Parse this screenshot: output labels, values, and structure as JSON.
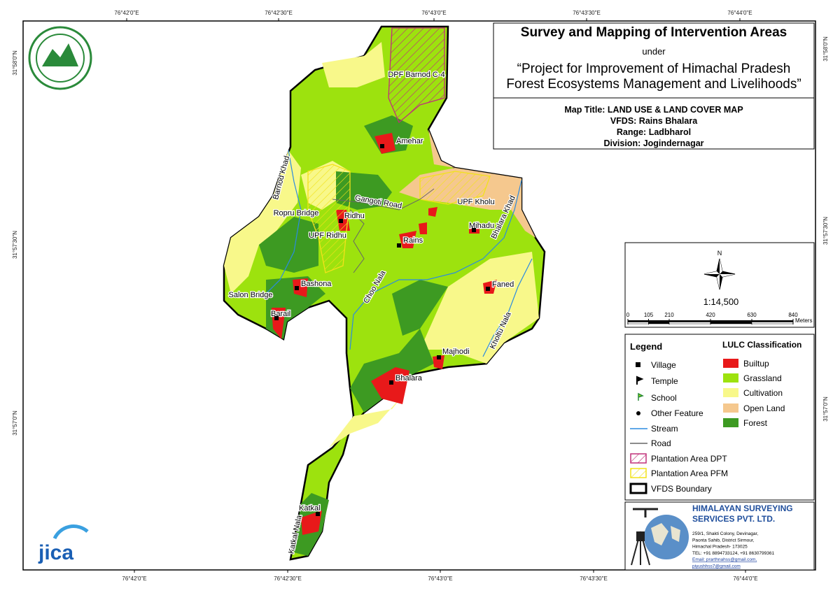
{
  "header": {
    "title": "Survey and Mapping of Intervention Areas",
    "under": "under",
    "project": [
      "“Project for Improvement of Himachal Pradesh",
      "Forest Ecosystems Management and Livelihoods”"
    ]
  },
  "map_info": {
    "map_title": "Map Title: LAND USE & LAND COVER MAP",
    "vfds": "VFDS: Rains Bhalara",
    "range": "Range: Ladbharol",
    "division": "Division: Jogindernagar"
  },
  "graticule": {
    "top": [
      "76°42'0\"E",
      "76°42'30\"E",
      "76°43'0\"E",
      "76°43'30\"E",
      "76°44'0\"E"
    ],
    "bottom": [
      "76°42'0\"E",
      "76°42'30\"E",
      "76°43'0\"E",
      "76°43'30\"E",
      "76°44'0\"E"
    ],
    "left": [
      "31°58'0\"N",
      "31°57'30\"N",
      "31°57'0\"N"
    ],
    "right": [
      "31°58'0\"N",
      "31°57'30\"N",
      "31°57'0\"N"
    ]
  },
  "places": [
    "DPF Barnod C-4",
    "Amehar",
    "Barnod Khad",
    "Gangoti Road",
    "UPF Kholu",
    "Bhalara Khad",
    "Ropru Bridge",
    "Ridhu",
    "Mihadu",
    "UPF Ridhu",
    "Rains",
    "Choo Nala",
    "Bashona",
    "Faned",
    "Salon Bridge",
    "Barail",
    "Kholtu Nala",
    "Majhodi",
    "Bhalara",
    "Katkal",
    "Katkal Nala"
  ],
  "scale": {
    "north": "N",
    "ratio": "1:14,500",
    "ticks": [
      0,
      105,
      210,
      420,
      630,
      840
    ],
    "unit": "Meters"
  },
  "legend": {
    "title": "Legend",
    "items": [
      "Village",
      "Temple",
      "School",
      "Other Feature",
      "Stream",
      "Road",
      "Plantation Area DPT",
      "Plantation Area PFM",
      "VFDS Boundary"
    ]
  },
  "lulc": {
    "title": "LULC Classification",
    "classes": [
      {
        "name": "Builtup",
        "color": "#e8191a"
      },
      {
        "name": "Grassland",
        "color": "#9de20e"
      },
      {
        "name": "Cultivation",
        "color": "#f8f88a"
      },
      {
        "name": "Open Land",
        "color": "#f5c88e"
      },
      {
        "name": "Forest",
        "color": "#3d9a22"
      }
    ]
  },
  "company": {
    "name": [
      "HIMALAYAN SURVEYING",
      "SERVICES PVT. LTD."
    ],
    "address": [
      "259/1, Shakti Colony, Devinagar,",
      "Paonta Sahib, District Sirmour,",
      "Himachal Pradesh- 173025",
      "TEL: +91 8894733124, +91 8630799361",
      "Email: prarthnahss@gmail.com,",
      "piyushhss7@gmail.com"
    ]
  },
  "logo_text": "jica"
}
